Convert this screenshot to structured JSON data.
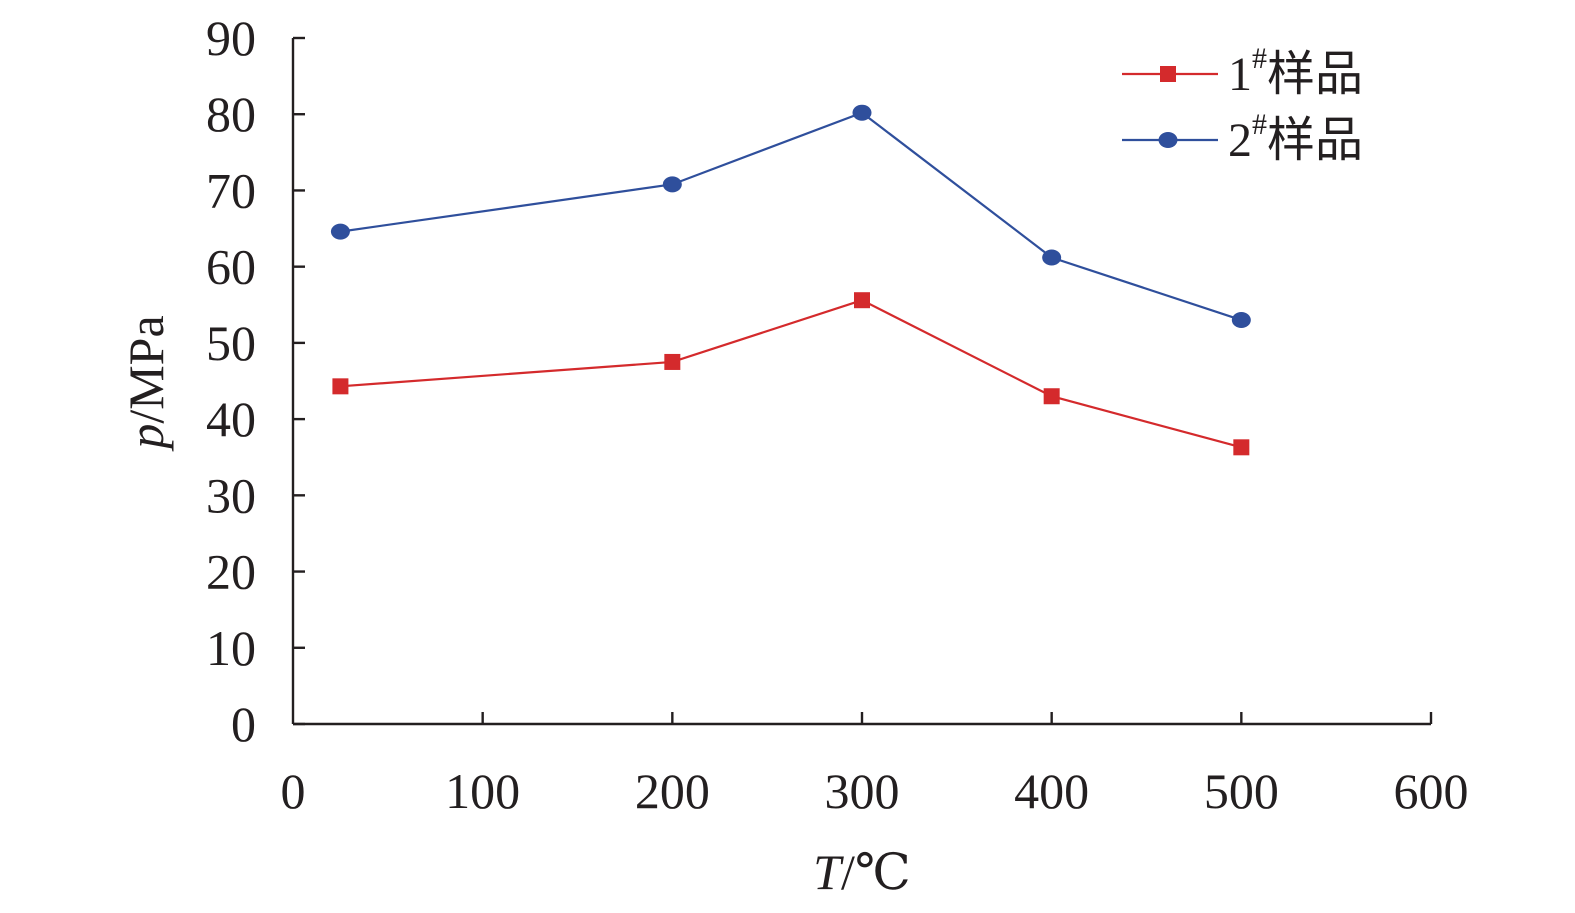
{
  "chart_data": {
    "type": "line",
    "title": "",
    "xlabel": {
      "symbol": "T",
      "unit": "/℃"
    },
    "ylabel": {
      "symbol": "p",
      "unit": "/MPa"
    },
    "xlim": [
      0,
      600
    ],
    "ylim": [
      0,
      90
    ],
    "xticks": [
      0,
      100,
      200,
      300,
      400,
      500,
      600
    ],
    "yticks": [
      0,
      10,
      20,
      30,
      40,
      50,
      60,
      70,
      80,
      90
    ],
    "grid": false,
    "legend_position": "top-right",
    "series": [
      {
        "name": "1",
        "name_sup": "#",
        "name_suffix": "样品",
        "color": "#d42a2c",
        "marker": "square",
        "x": [
          25,
          200,
          300,
          400,
          500
        ],
        "y": [
          44.3,
          47.5,
          55.6,
          43.0,
          36.3
        ]
      },
      {
        "name": "2",
        "name_sup": "#",
        "name_suffix": "样品",
        "color": "#2f4f9c",
        "marker": "circle",
        "x": [
          25,
          200,
          300,
          400,
          500
        ],
        "y": [
          64.6,
          70.8,
          80.2,
          61.2,
          53.0
        ]
      }
    ]
  }
}
